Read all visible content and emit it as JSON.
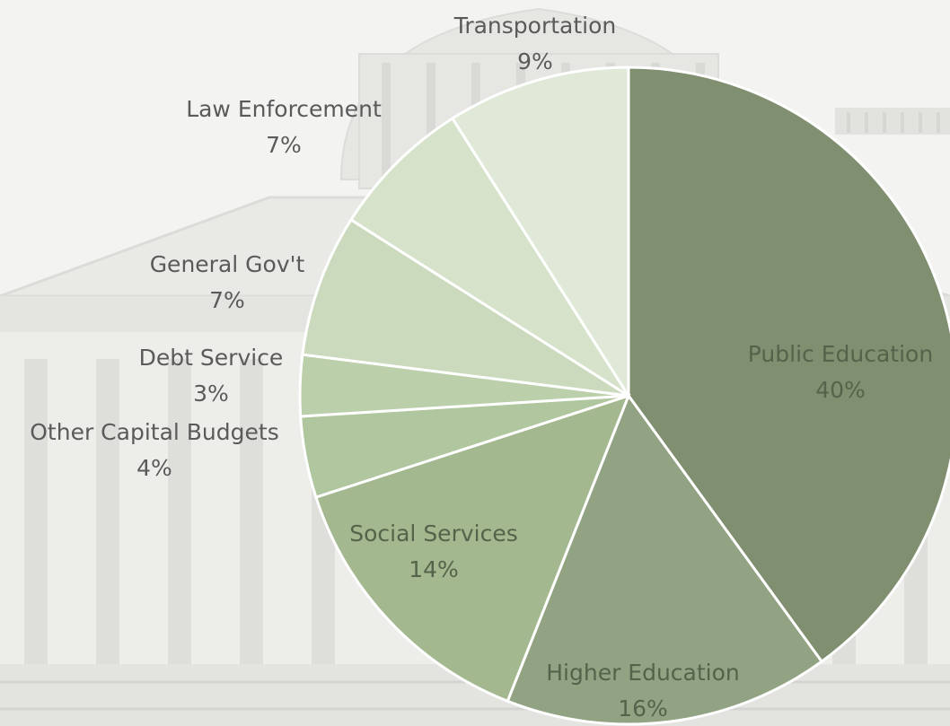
{
  "chart_data": {
    "type": "pie",
    "title": "",
    "categories": [
      "Public Education",
      "Higher Education",
      "Social Services",
      "Other Capital Budgets",
      "Debt Service",
      "General Gov't",
      "Law Enforcement",
      "Transportation"
    ],
    "values": [
      40,
      16,
      14,
      4,
      3,
      7,
      7,
      9
    ],
    "value_labels": [
      "40%",
      "16%",
      "14%",
      "4%",
      "3%",
      "7%",
      "7%",
      "9%"
    ],
    "start_angle_deg": 0,
    "direction": "clockwise",
    "colors": [
      "#7f8f6f",
      "#92a383",
      "#a3b88f",
      "#b0c69e",
      "#bccfab",
      "#cbdabc",
      "#d6e2ca",
      "#e0e9d8"
    ],
    "slice_border_color": "#ffffff",
    "legend": "none",
    "background": "faded photograph of a capitol building"
  }
}
